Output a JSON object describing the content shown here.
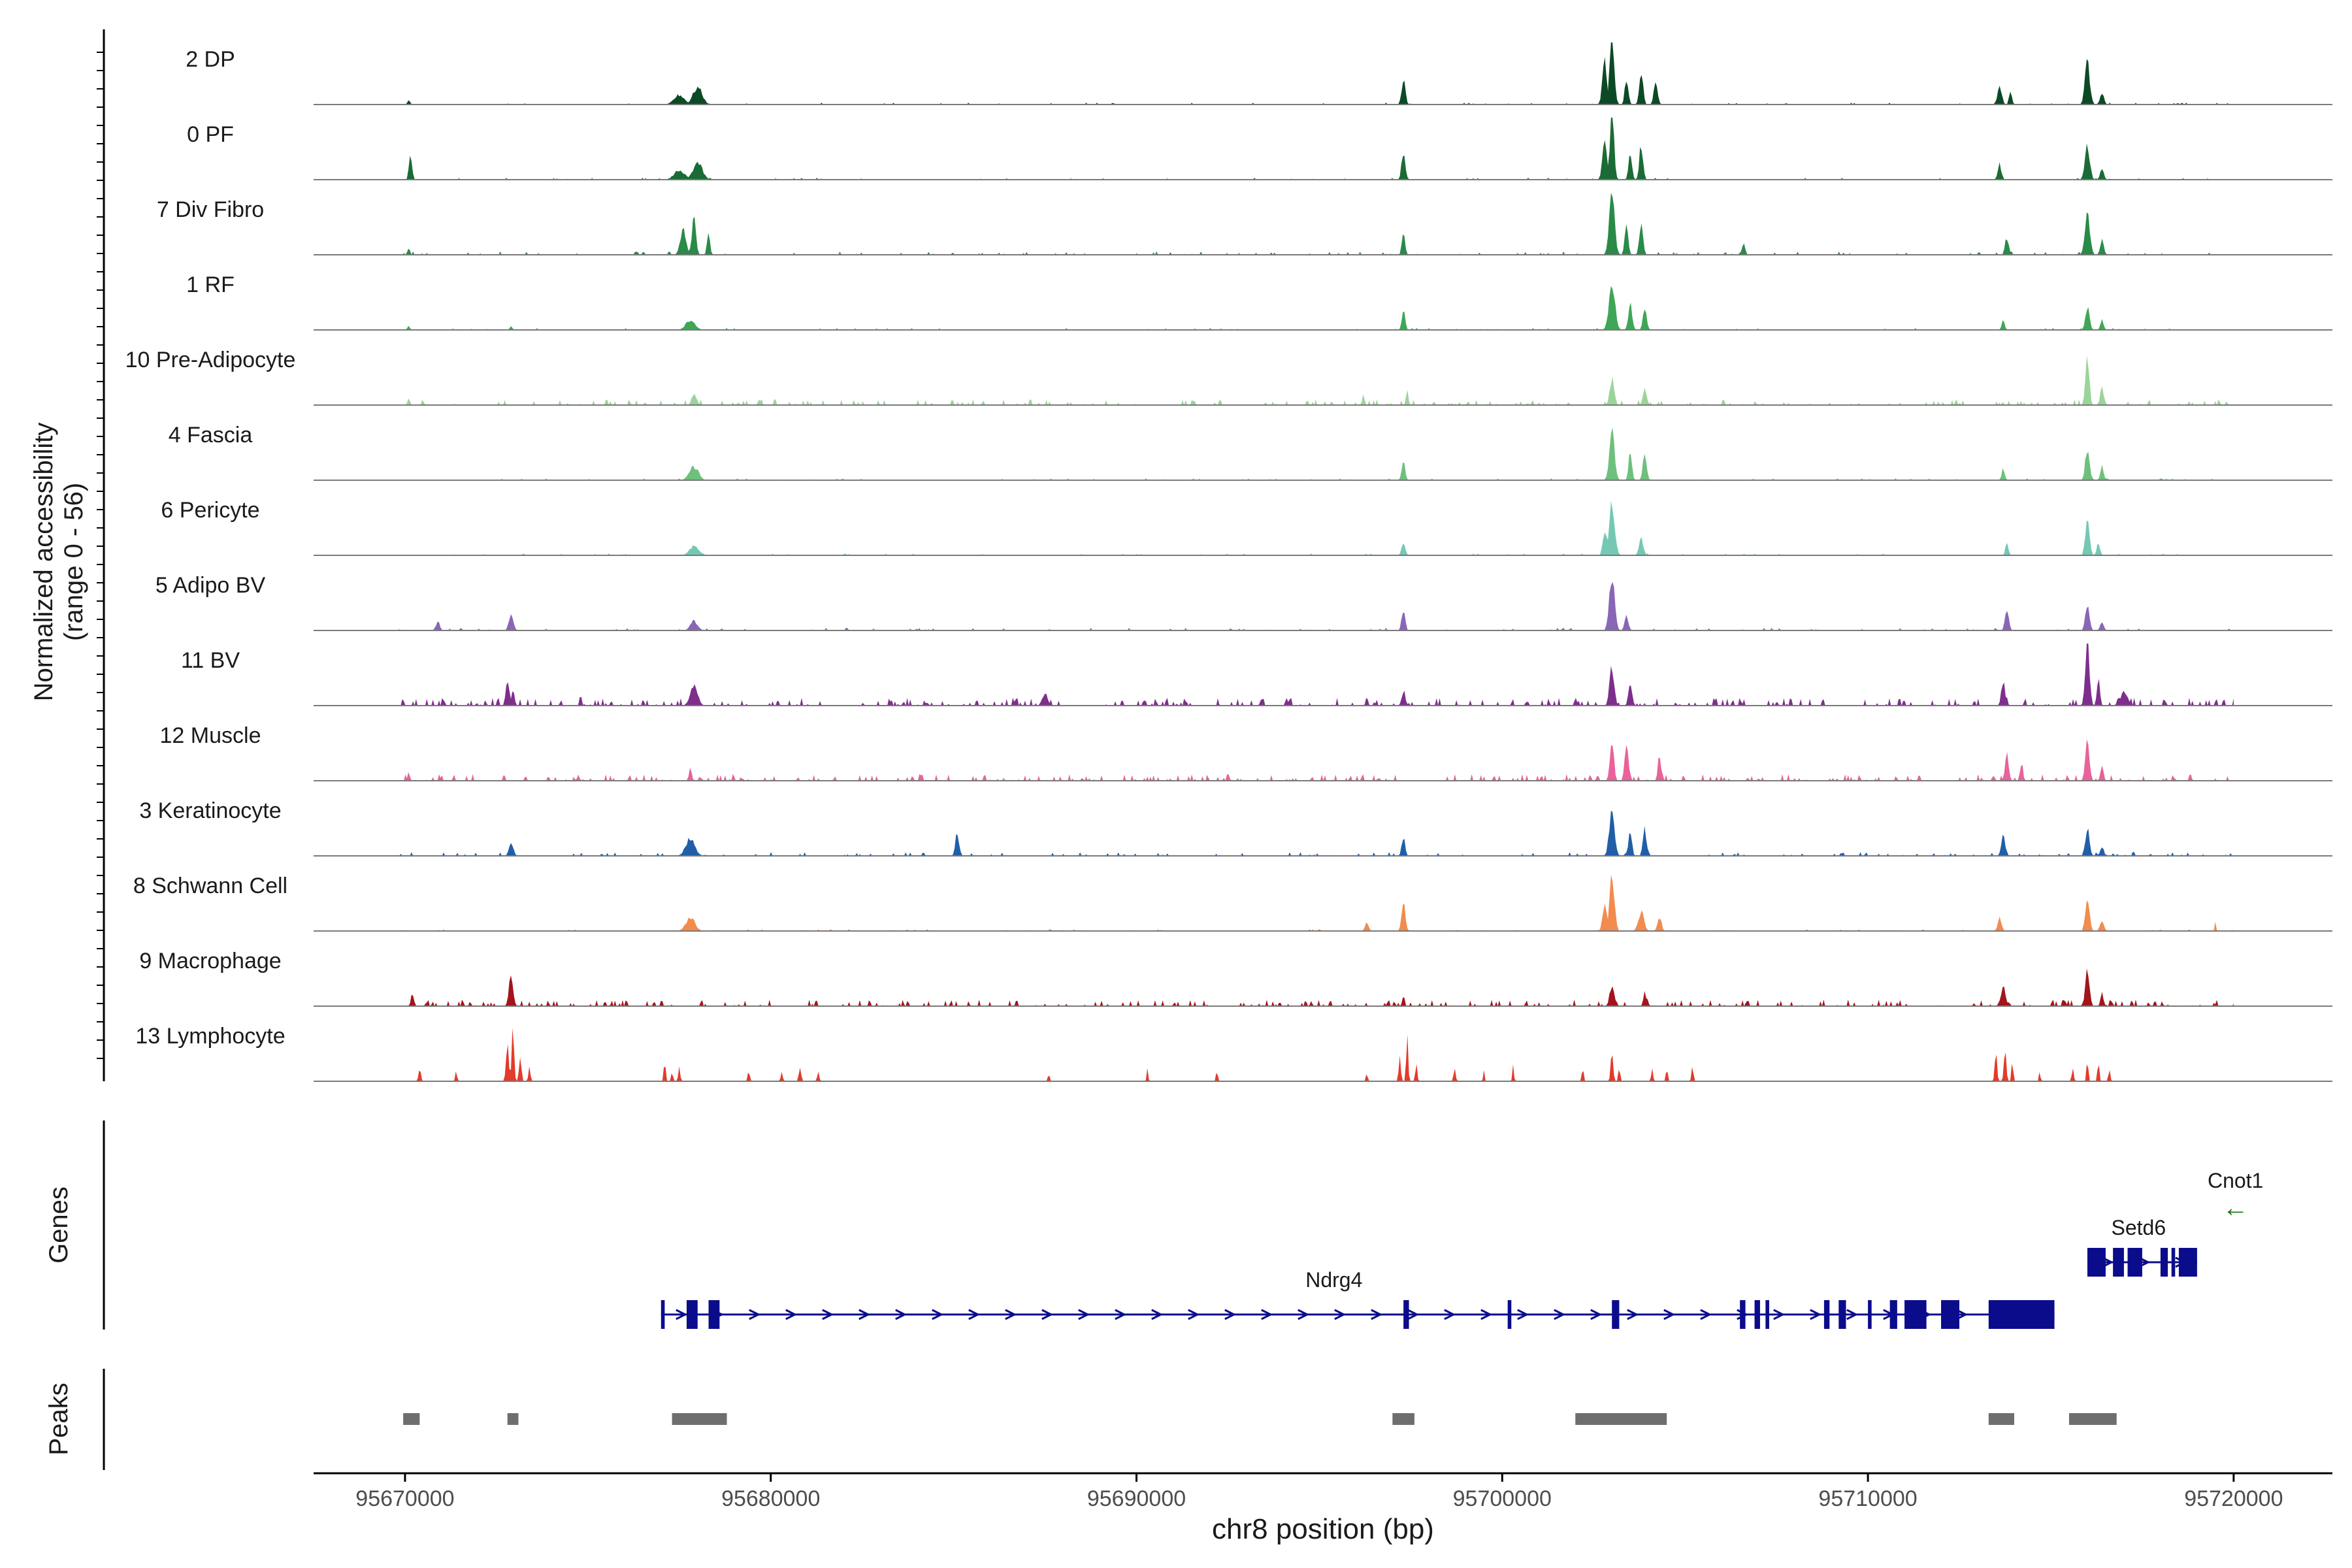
{
  "chart_data": {
    "type": "area",
    "title": "",
    "chromosome": "chr8",
    "xlabel": "chr8 position (bp)",
    "ylabel_line1": "Normalized accessibility",
    "ylabel_line2": "(range 0 - 56)",
    "xlim": [
      95667500,
      95722700
    ],
    "ylim": [
      0,
      56
    ],
    "xticks": [
      95670000,
      95680000,
      95690000,
      95700000,
      95710000,
      95720000
    ],
    "xtick_labels": [
      "95670000",
      "95680000",
      "95690000",
      "95700000",
      "95710000",
      "95720000"
    ],
    "track_range": [
      95669800,
      95720000
    ],
    "tracks": [
      {
        "name": "2 DP",
        "color": "#0b4a25",
        "density": 0.35,
        "peaks": [
          [
            95670100,
            4,
            80
          ],
          [
            95677500,
            10,
            280
          ],
          [
            95678000,
            18,
            250
          ],
          [
            95697300,
            28,
            100
          ],
          [
            95702800,
            45,
            120
          ],
          [
            95703000,
            72,
            120
          ],
          [
            95703400,
            30,
            90
          ],
          [
            95703800,
            34,
            100
          ],
          [
            95704200,
            25,
            100
          ],
          [
            95713600,
            18,
            120
          ],
          [
            95713900,
            14,
            80
          ],
          [
            95716000,
            45,
            130
          ],
          [
            95716400,
            12,
            100
          ]
        ]
      },
      {
        "name": "0 PF",
        "color": "#1a6b35",
        "density": 0.35,
        "peaks": [
          [
            95670150,
            30,
            80
          ],
          [
            95677500,
            10,
            280
          ],
          [
            95678000,
            18,
            250
          ],
          [
            95697300,
            30,
            100
          ],
          [
            95702800,
            40,
            120
          ],
          [
            95703000,
            72,
            110
          ],
          [
            95703500,
            30,
            90
          ],
          [
            95703800,
            36,
            100
          ],
          [
            95713600,
            16,
            100
          ],
          [
            95716000,
            38,
            130
          ],
          [
            95716400,
            12,
            100
          ]
        ]
      },
      {
        "name": "7 Div Fibro",
        "color": "#2a8a48",
        "density": 0.6,
        "peaks": [
          [
            95670100,
            8,
            60
          ],
          [
            95677600,
            28,
            150
          ],
          [
            95677900,
            40,
            110
          ],
          [
            95678300,
            22,
            80
          ],
          [
            95697300,
            20,
            90
          ],
          [
            95703000,
            75,
            140
          ],
          [
            95703400,
            36,
            90
          ],
          [
            95703800,
            34,
            100
          ],
          [
            95706600,
            12,
            80
          ],
          [
            95713800,
            18,
            100
          ],
          [
            95716000,
            50,
            130
          ],
          [
            95716400,
            16,
            100
          ]
        ]
      },
      {
        "name": "1 RF",
        "color": "#3fa657",
        "density": 0.35,
        "peaks": [
          [
            95670100,
            5,
            60
          ],
          [
            95672900,
            5,
            60
          ],
          [
            95677800,
            10,
            250
          ],
          [
            95697300,
            20,
            90
          ],
          [
            95703000,
            52,
            160
          ],
          [
            95703500,
            30,
            100
          ],
          [
            95703900,
            24,
            100
          ],
          [
            95713700,
            10,
            80
          ],
          [
            95716000,
            24,
            110
          ],
          [
            95716400,
            10,
            90
          ]
        ]
      },
      {
        "name": "10 Pre-Adipocyte",
        "color": "#9bd499",
        "density": 1.0,
        "peaks": [
          [
            95670100,
            8,
            60
          ],
          [
            95677900,
            12,
            120
          ],
          [
            95696200,
            12,
            60
          ],
          [
            95697400,
            16,
            60
          ],
          [
            95703000,
            28,
            120
          ],
          [
            95703900,
            18,
            100
          ],
          [
            95716000,
            55,
            100
          ],
          [
            95716400,
            18,
            100
          ]
        ]
      },
      {
        "name": "4 Fascia",
        "color": "#6ec07c",
        "density": 0.35,
        "peaks": [
          [
            95677900,
            14,
            250
          ],
          [
            95697300,
            22,
            90
          ],
          [
            95703000,
            50,
            140
          ],
          [
            95703500,
            28,
            90
          ],
          [
            95703900,
            30,
            100
          ],
          [
            95713700,
            12,
            80
          ],
          [
            95716000,
            34,
            110
          ],
          [
            95716400,
            14,
            90
          ]
        ]
      },
      {
        "name": "6 Pericyte",
        "color": "#74c8b4",
        "density": 0.35,
        "peaks": [
          [
            95677900,
            10,
            250
          ],
          [
            95697300,
            14,
            100
          ],
          [
            95702800,
            28,
            100
          ],
          [
            95703000,
            55,
            150
          ],
          [
            95703800,
            18,
            120
          ],
          [
            95713800,
            14,
            80
          ],
          [
            95716000,
            40,
            110
          ],
          [
            95716300,
            12,
            90
          ]
        ]
      },
      {
        "name": "5 Adipo BV",
        "color": "#8a66b6",
        "density": 0.5,
        "peaks": [
          [
            95670900,
            10,
            100
          ],
          [
            95672900,
            18,
            120
          ],
          [
            95677900,
            10,
            200
          ],
          [
            95697300,
            24,
            90
          ],
          [
            95703000,
            60,
            140
          ],
          [
            95703400,
            16,
            100
          ],
          [
            95713800,
            22,
            100
          ],
          [
            95716000,
            26,
            110
          ],
          [
            95716400,
            10,
            90
          ]
        ]
      },
      {
        "name": "11 BV",
        "color": "#7e2f8c",
        "density": 1.4,
        "peaks": [
          [
            95672800,
            28,
            90
          ],
          [
            95672950,
            16,
            80
          ],
          [
            95674800,
            10,
            60
          ],
          [
            95677900,
            20,
            200
          ],
          [
            95687500,
            12,
            150
          ],
          [
            95696300,
            10,
            60
          ],
          [
            95697300,
            16,
            100
          ],
          [
            95703000,
            42,
            120
          ],
          [
            95703500,
            22,
            100
          ],
          [
            95713700,
            26,
            100
          ],
          [
            95716000,
            75,
            110
          ],
          [
            95716300,
            30,
            80
          ],
          [
            95717000,
            14,
            200
          ]
        ]
      },
      {
        "name": "12 Muscle",
        "color": "#e8629b",
        "density": 1.2,
        "peaks": [
          [
            95670100,
            10,
            60
          ],
          [
            95671000,
            8,
            40
          ],
          [
            95677800,
            12,
            80
          ],
          [
            95703000,
            44,
            100
          ],
          [
            95703400,
            38,
            100
          ],
          [
            95704300,
            30,
            80
          ],
          [
            95713800,
            30,
            100
          ],
          [
            95714200,
            18,
            80
          ],
          [
            95716000,
            42,
            110
          ],
          [
            95716400,
            16,
            80
          ]
        ]
      },
      {
        "name": "3 Keratinocyte",
        "color": "#225ea8",
        "density": 0.7,
        "peaks": [
          [
            95672900,
            14,
            120
          ],
          [
            95677800,
            18,
            250
          ],
          [
            95685100,
            24,
            100
          ],
          [
            95697300,
            20,
            90
          ],
          [
            95703000,
            50,
            140
          ],
          [
            95703500,
            26,
            90
          ],
          [
            95703900,
            28,
            100
          ],
          [
            95713700,
            24,
            100
          ],
          [
            95716000,
            30,
            110
          ],
          [
            95716400,
            10,
            90
          ]
        ]
      },
      {
        "name": "8 Schwann Cell",
        "color": "#f28c4e",
        "density": 0.35,
        "peaks": [
          [
            95677800,
            14,
            250
          ],
          [
            95696300,
            10,
            90
          ],
          [
            95697300,
            30,
            100
          ],
          [
            95702800,
            30,
            110
          ],
          [
            95703000,
            58,
            130
          ],
          [
            95703800,
            20,
            150
          ],
          [
            95704300,
            16,
            100
          ],
          [
            95713600,
            14,
            100
          ],
          [
            95716000,
            38,
            110
          ],
          [
            95716400,
            12,
            100
          ],
          [
            95719500,
            10,
            40
          ]
        ]
      },
      {
        "name": "9 Macrophage",
        "color": "#a3141c",
        "density": 1.2,
        "peaks": [
          [
            95670200,
            12,
            80
          ],
          [
            95672900,
            35,
            110
          ],
          [
            95697300,
            12,
            60
          ],
          [
            95703000,
            22,
            120
          ],
          [
            95703900,
            14,
            80
          ],
          [
            95713700,
            24,
            100
          ],
          [
            95716000,
            38,
            110
          ],
          [
            95716400,
            14,
            80
          ]
        ]
      },
      {
        "name": "13 Lymphocyte",
        "color": "#e33b2a",
        "density": 0.0,
        "peaks": [
          [
            95670400,
            14,
            60
          ],
          [
            95671400,
            10,
            50
          ],
          [
            95672800,
            45,
            70
          ],
          [
            95672950,
            65,
            60
          ],
          [
            95673150,
            30,
            60
          ],
          [
            95673400,
            16,
            50
          ],
          [
            95677100,
            22,
            50
          ],
          [
            95677300,
            10,
            50
          ],
          [
            95677500,
            16,
            50
          ],
          [
            95679400,
            10,
            60
          ],
          [
            95680300,
            10,
            50
          ],
          [
            95680800,
            14,
            60
          ],
          [
            95681300,
            12,
            50
          ],
          [
            95687600,
            10,
            40
          ],
          [
            95690300,
            14,
            40
          ],
          [
            95692200,
            12,
            40
          ],
          [
            95696300,
            10,
            40
          ],
          [
            95697200,
            30,
            50
          ],
          [
            95697400,
            50,
            50
          ],
          [
            95697650,
            20,
            50
          ],
          [
            95698700,
            16,
            50
          ],
          [
            95699500,
            12,
            40
          ],
          [
            95700300,
            18,
            40
          ],
          [
            95702200,
            14,
            50
          ],
          [
            95703000,
            38,
            60
          ],
          [
            95703200,
            14,
            50
          ],
          [
            95704100,
            12,
            50
          ],
          [
            95704500,
            14,
            50
          ],
          [
            95705200,
            16,
            50
          ],
          [
            95713500,
            30,
            60
          ],
          [
            95713750,
            40,
            60
          ],
          [
            95713950,
            20,
            50
          ],
          [
            95714700,
            10,
            40
          ],
          [
            95715600,
            16,
            50
          ],
          [
            95716000,
            20,
            50
          ],
          [
            95716300,
            22,
            50
          ],
          [
            95716600,
            14,
            50
          ]
        ]
      }
    ],
    "genes": [
      {
        "name": "Ndrg4",
        "strand": "+",
        "start": 95677000,
        "end": 95715100,
        "exons": [
          [
            95677000,
            95677100
          ],
          [
            95677700,
            95678000
          ],
          [
            95678300,
            95678600
          ],
          [
            95697300,
            95697450
          ],
          [
            95700150,
            95700250
          ],
          [
            95703000,
            95703200
          ],
          [
            95706500,
            95706650
          ],
          [
            95706900,
            95707050
          ],
          [
            95707200,
            95707300
          ],
          [
            95708800,
            95708950
          ],
          [
            95709200,
            95709400
          ],
          [
            95710000,
            95710100
          ],
          [
            95710600,
            95710800
          ],
          [
            95711000,
            95711600
          ],
          [
            95712000,
            95712500
          ],
          [
            95713300,
            95715100
          ]
        ]
      },
      {
        "name": "Setd6",
        "strand": "+",
        "start": 95716000,
        "end": 95719000,
        "exons": [
          [
            95716000,
            95716500
          ],
          [
            95716700,
            95717000
          ],
          [
            95717100,
            95717500
          ],
          [
            95718000,
            95718200
          ],
          [
            95718300,
            95718400
          ],
          [
            95718500,
            95719000
          ]
        ]
      },
      {
        "name": "Cnot1",
        "strand": "-",
        "arrow_label": "←",
        "start": 95719700,
        "end": 95720400
      }
    ],
    "peak_regions": [
      [
        95669950,
        95670400
      ],
      [
        95672800,
        95673100
      ],
      [
        95677300,
        95678800
      ],
      [
        95697000,
        95697600
      ],
      [
        95702000,
        95704500
      ],
      [
        95713300,
        95714000
      ],
      [
        95715500,
        95716800
      ]
    ],
    "panel_labels": {
      "genes": "Genes",
      "peaks": "Peaks"
    }
  }
}
